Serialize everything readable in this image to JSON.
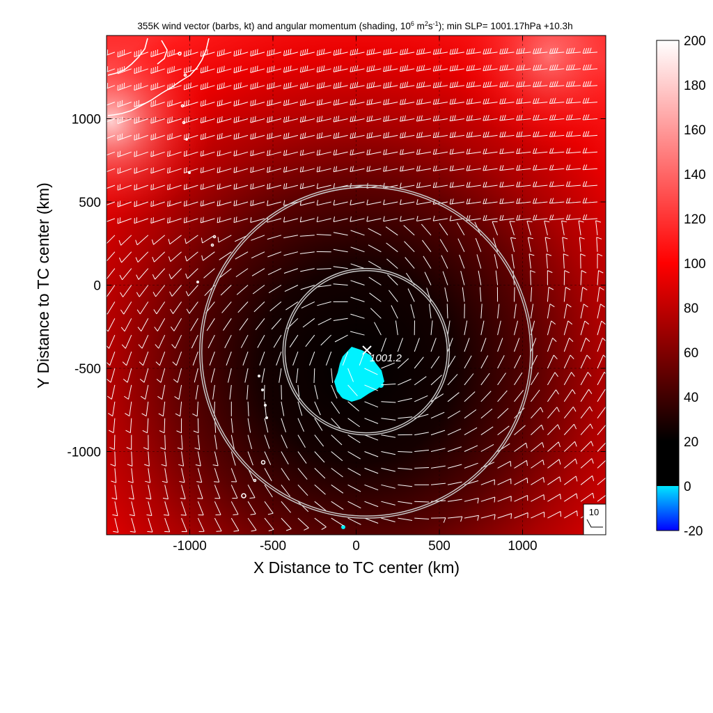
{
  "chart_data": {
    "type": "heatmap",
    "title_main": "355K wind vector (barbs, kt) and angular momentum (shading, 10",
    "title_exp1": "6",
    "title_mid1": " m",
    "title_exp2": "2",
    "title_mid2": "s",
    "title_exp3": "-1",
    "title_tail": "); min SLP= 1001.17hPa  +10.3h",
    "xlabel": "X Distance to TC center (km)",
    "ylabel": "Y Distance to TC center (km)",
    "xlim": [
      -1500,
      1500
    ],
    "ylim": [
      -1500,
      1500
    ],
    "xticks": [
      -1000,
      -500,
      0,
      500,
      1000
    ],
    "yticks": [
      1000,
      500,
      0,
      -500,
      -1000
    ],
    "xtick_labels": [
      "-1000",
      "-500",
      "0",
      "500",
      "1000"
    ],
    "ytick_labels": [
      "1000",
      "500",
      "0",
      "-500",
      "-1000"
    ],
    "grid": true,
    "colorbar": {
      "min": -20,
      "max": 200,
      "ticks": [
        200,
        180,
        160,
        140,
        120,
        100,
        80,
        60,
        40,
        20,
        0,
        -20
      ],
      "tick_labels": [
        "200",
        "180",
        "160",
        "140",
        "120",
        "100",
        "80",
        "60",
        "40",
        "20",
        "0",
        "-20"
      ],
      "colors": {
        "negative_low": "#0000ff",
        "negative_high": "#00f0ff",
        "zero": "#000000",
        "mid": "#ff0000",
        "max": "#ffffff"
      }
    },
    "rings": [
      {
        "center_x_km": 60,
        "center_y_km": -400,
        "radius_km": 500
      },
      {
        "center_x_km": 60,
        "center_y_km": -400,
        "radius_km": 1000
      }
    ],
    "min_slp_marker": {
      "x_km": 60,
      "y_km": -390,
      "label": "1001.2"
    },
    "reference_barb": {
      "label": "10",
      "speed_kt": 10
    },
    "barb_grid": {
      "x_start_km": -1450,
      "x_step_km": 100,
      "y_start_km": 1400,
      "y_step_km": 100
    },
    "colors": {
      "center_dark": "#000000",
      "outer_red": "#ff0000",
      "coast": "#ffffff",
      "barb": "#ffffff",
      "ring": "#c8c8c8"
    }
  }
}
